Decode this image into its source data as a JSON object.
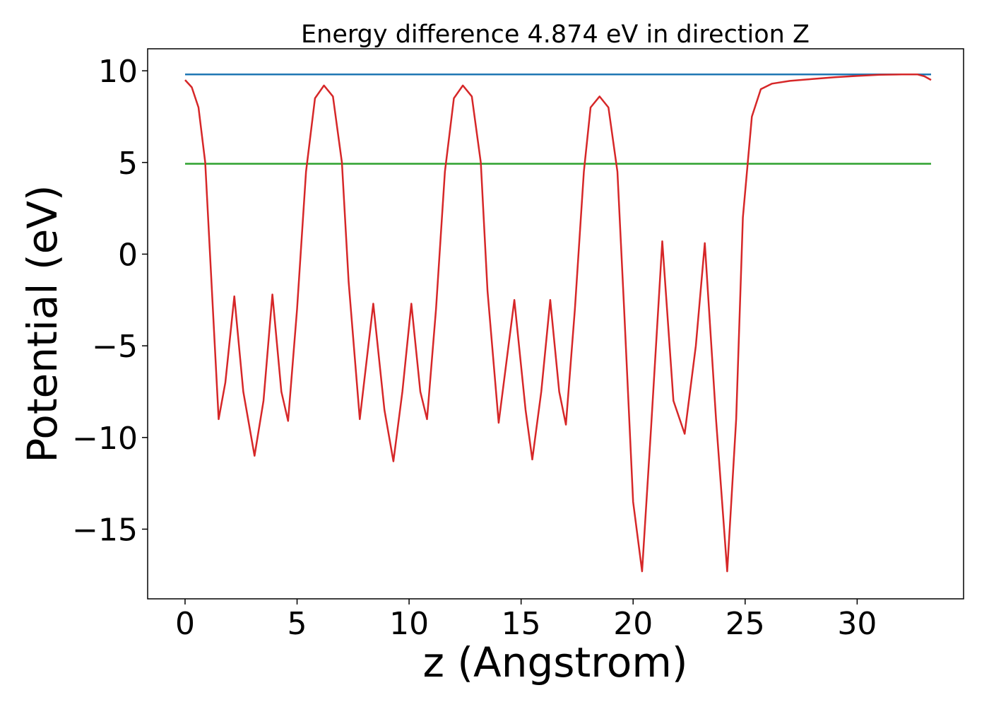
{
  "chart_data": {
    "type": "line",
    "title": "Energy difference 4.874 eV in direction Z",
    "xlabel": "z (Angstrom)",
    "ylabel": "Potential (eV)",
    "xlim": [
      -1.67,
      34.75
    ],
    "ylim": [
      -18.8,
      11.2
    ],
    "xticks": [
      0,
      5,
      10,
      15,
      20,
      25,
      30
    ],
    "yticks": [
      10,
      5,
      0,
      -5,
      -10,
      -15
    ],
    "xtick_labels": [
      "0",
      "5",
      "10",
      "15",
      "20",
      "25",
      "30"
    ],
    "ytick_labels": [
      "10",
      "5",
      "0",
      "−5",
      "−10",
      "−15"
    ],
    "grid": false,
    "series": [
      {
        "color": "#1f77b4",
        "x": [
          0,
          33.3
        ],
        "y": [
          9.8,
          9.8
        ]
      },
      {
        "color": "#2ca02c",
        "x": [
          0,
          33.3
        ],
        "y": [
          4.93,
          4.93
        ]
      },
      {
        "color": "#d62728",
        "x": [
          0,
          0.3,
          0.6,
          0.9,
          1.2,
          1.5,
          1.8,
          2.2,
          2.6,
          3.1,
          3.5,
          3.9,
          4.3,
          4.6,
          5.0,
          5.4,
          5.8,
          6.2,
          6.6,
          7.0,
          7.3,
          7.8,
          8.4,
          8.9,
          9.3,
          9.7,
          10.1,
          10.5,
          10.8,
          11.2,
          11.6,
          12.0,
          12.4,
          12.8,
          13.2,
          13.5,
          14.0,
          14.7,
          15.2,
          15.5,
          15.9,
          16.3,
          16.7,
          17.0,
          17.4,
          17.8,
          18.1,
          18.5,
          18.9,
          19.3,
          19.6,
          20.0,
          20.4,
          20.8,
          21.3,
          21.8,
          22.3,
          22.8,
          23.2,
          23.7,
          24.2,
          24.6,
          24.9,
          25.3,
          25.7,
          26.2,
          27.0,
          28.0,
          29.0,
          30.0,
          31.0,
          32.0,
          32.7,
          33.0,
          33.3
        ],
        "y": [
          9.5,
          9.1,
          8.0,
          5.0,
          -2.0,
          -9.0,
          -7.0,
          -2.3,
          -7.5,
          -11.0,
          -8.0,
          -2.2,
          -7.5,
          -9.1,
          -3.0,
          4.5,
          8.5,
          9.2,
          8.6,
          5.0,
          -1.5,
          -9.0,
          -2.7,
          -8.5,
          -11.3,
          -7.5,
          -2.7,
          -7.5,
          -9.0,
          -3.0,
          4.5,
          8.5,
          9.2,
          8.6,
          5.0,
          -2.0,
          -9.2,
          -2.5,
          -8.5,
          -11.2,
          -7.5,
          -2.5,
          -7.5,
          -9.3,
          -3.0,
          4.5,
          8.0,
          8.6,
          8.0,
          4.5,
          -3.0,
          -13.5,
          -17.3,
          -9.5,
          0.7,
          -8.0,
          -9.8,
          -5.0,
          0.6,
          -9.0,
          -17.3,
          -9.0,
          2.0,
          7.5,
          9.0,
          9.3,
          9.45,
          9.55,
          9.65,
          9.72,
          9.78,
          9.8,
          9.8,
          9.7,
          9.5
        ]
      }
    ]
  }
}
